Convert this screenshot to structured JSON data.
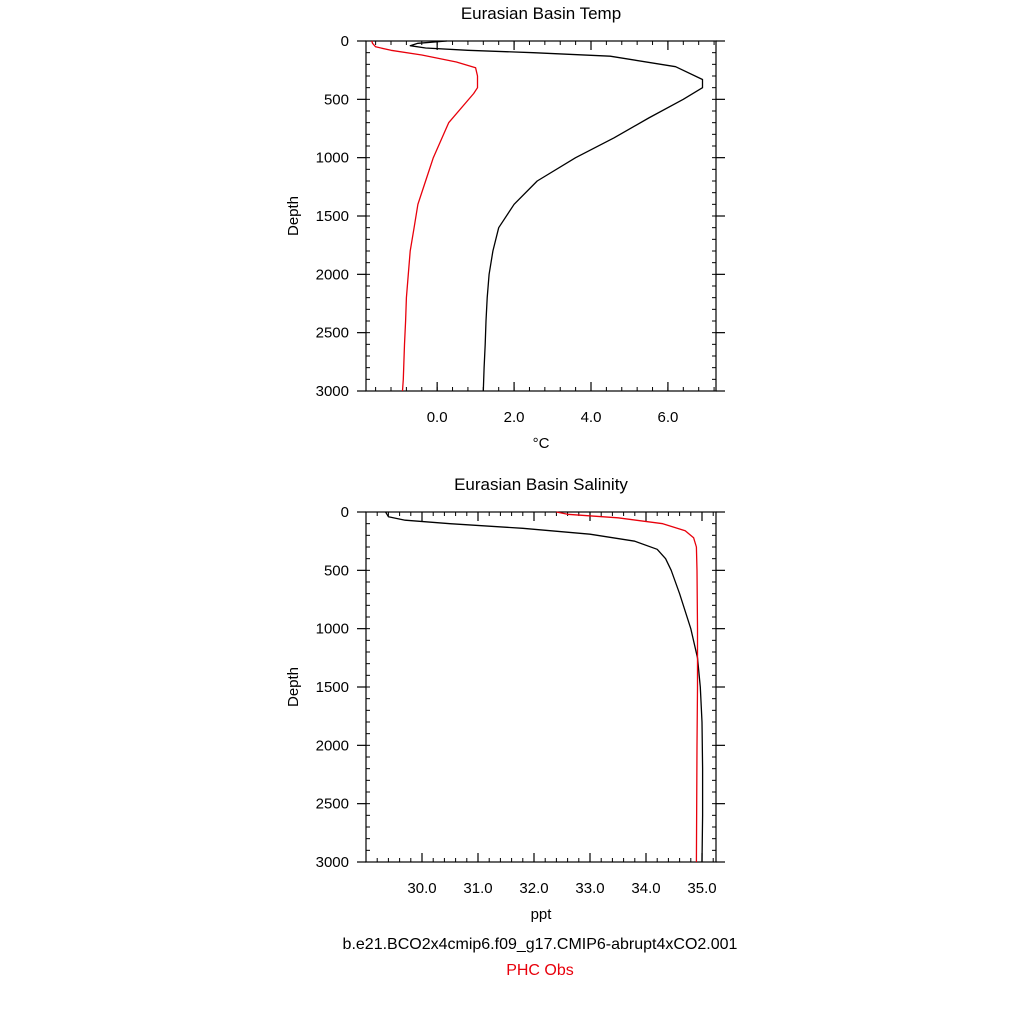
{
  "legend": {
    "model_label": "b.e21.BCO2x4cmip6.f09_g17.CMIP6-abrupt4xCO2.001",
    "obs_label": "PHC Obs"
  },
  "colors": {
    "model": "#000000",
    "obs": "#e8000b",
    "axis": "#000000"
  },
  "chart_data": [
    {
      "type": "line",
      "title": "Eurasian Basin Temp",
      "xlabel": "°C",
      "ylabel": "Depth",
      "xlim": [
        -1.85,
        7.25
      ],
      "ylim": [
        3000,
        0
      ],
      "x_major_ticks": [
        0.0,
        2.0,
        4.0,
        6.0
      ],
      "x_tick_labels": [
        "0.0",
        "2.0",
        "4.0",
        "6.0"
      ],
      "y_major_ticks": [
        0,
        500,
        1000,
        1500,
        2000,
        2500,
        3000
      ],
      "y_tick_labels": [
        "0",
        "500",
        "1000",
        "1500",
        "2000",
        "2500",
        "3000"
      ],
      "grid": false,
      "series": [
        {
          "name": "b.e21.BCO2x4cmip6.f09_g17.CMIP6-abrupt4xCO2.001",
          "color": "#000000",
          "x": [
            0.25,
            -0.5,
            -0.7,
            -0.3,
            0.8,
            2.5,
            4.5,
            6.2,
            6.9,
            6.9,
            6.4,
            5.5,
            4.6,
            3.6,
            2.6,
            2.0,
            1.6,
            1.45,
            1.35,
            1.3,
            1.27,
            1.25,
            1.22,
            1.2
          ],
          "y": [
            0,
            20,
            40,
            60,
            80,
            100,
            130,
            220,
            330,
            400,
            500,
            660,
            830,
            1000,
            1200,
            1400,
            1600,
            1800,
            2000,
            2200,
            2400,
            2600,
            2800,
            3000
          ]
        },
        {
          "name": "PHC Obs",
          "color": "#e8000b",
          "x": [
            -1.7,
            -1.68,
            -1.6,
            -1.2,
            -0.4,
            0.5,
            1.0,
            1.05,
            1.05,
            0.95,
            0.3,
            -0.1,
            -0.3,
            -0.5,
            -0.6,
            -0.7,
            -0.75,
            -0.8,
            -0.82,
            -0.85,
            -0.87,
            -0.88,
            -0.9
          ],
          "y": [
            0,
            20,
            50,
            80,
            120,
            180,
            230,
            300,
            400,
            450,
            700,
            1000,
            1200,
            1400,
            1600,
            1800,
            2000,
            2200,
            2400,
            2600,
            2800,
            2900,
            3000
          ]
        }
      ]
    },
    {
      "type": "line",
      "title": "Eurasian Basin Salinity",
      "xlabel": "ppt",
      "ylabel": "Depth",
      "xlim": [
        29.0,
        35.25
      ],
      "ylim": [
        3000,
        0
      ],
      "x_major_ticks": [
        30.0,
        31.0,
        32.0,
        33.0,
        34.0,
        35.0
      ],
      "x_tick_labels": [
        "30.0",
        "31.0",
        "32.0",
        "33.0",
        "34.0",
        "35.0"
      ],
      "y_major_ticks": [
        0,
        500,
        1000,
        1500,
        2000,
        2500,
        3000
      ],
      "y_tick_labels": [
        "0",
        "500",
        "1000",
        "1500",
        "2000",
        "2500",
        "3000"
      ],
      "grid": false,
      "series": [
        {
          "name": "b.e21.BCO2x4cmip6.f09_g17.CMIP6-abrupt4xCO2.001",
          "color": "#000000",
          "x": [
            29.35,
            29.4,
            29.7,
            30.5,
            31.8,
            33.0,
            33.8,
            34.2,
            34.35,
            34.45,
            34.6,
            34.8,
            34.92,
            34.97,
            35.0,
            35.01,
            35.01,
            35.0
          ],
          "y": [
            0,
            40,
            70,
            100,
            140,
            190,
            250,
            320,
            400,
            500,
            700,
            1000,
            1250,
            1500,
            1800,
            2200,
            2600,
            3000
          ]
        },
        {
          "name": "PHC Obs",
          "color": "#e8000b",
          "x": [
            32.4,
            32.6,
            33.5,
            34.3,
            34.7,
            34.85,
            34.9,
            34.91,
            34.92,
            34.92,
            34.91,
            34.9
          ],
          "y": [
            0,
            20,
            50,
            100,
            160,
            220,
            300,
            500,
            1000,
            1500,
            2000,
            3000
          ]
        }
      ]
    }
  ]
}
